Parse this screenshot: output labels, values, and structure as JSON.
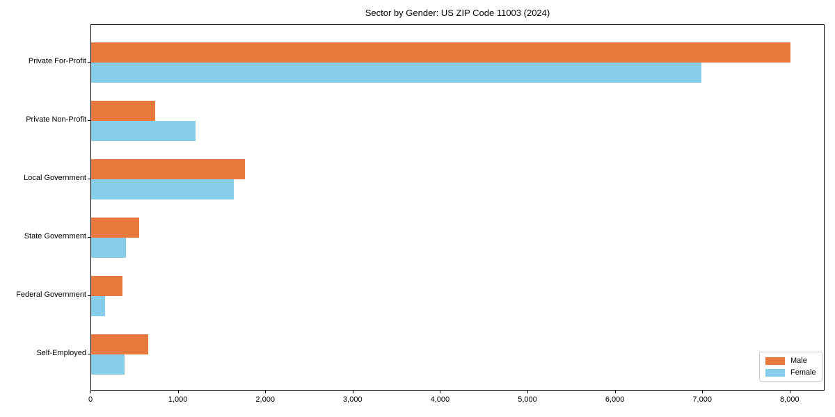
{
  "figure": {
    "background": "#ffffff",
    "frame_color": "#000000"
  },
  "chart_data": {
    "type": "bar",
    "orientation": "horizontal",
    "title": "Sector by Gender: US ZIP Code 11003 (2024)",
    "categories": [
      "Private For-Profit",
      "Private Non-Profit",
      "Local Government",
      "State Government",
      "Federal Government",
      "Self-Employed"
    ],
    "series": [
      {
        "name": "Male",
        "color": "#e8793d",
        "values": [
          8000,
          730,
          1760,
          550,
          360,
          650
        ]
      },
      {
        "name": "Female",
        "color": "#87ceeb",
        "values": [
          6980,
          1190,
          1630,
          400,
          160,
          380
        ]
      }
    ],
    "xlabel": "",
    "ylabel": "",
    "xlim": [
      0,
      8400
    ],
    "xticks": [
      0,
      1000,
      2000,
      3000,
      4000,
      5000,
      6000,
      7000,
      8000
    ],
    "xtick_labels": [
      "0",
      "1,000",
      "2,000",
      "3,000",
      "4,000",
      "5,000",
      "6,000",
      "7,000",
      "8,000"
    ],
    "grid": false,
    "legend": {
      "position": "lower right"
    }
  }
}
